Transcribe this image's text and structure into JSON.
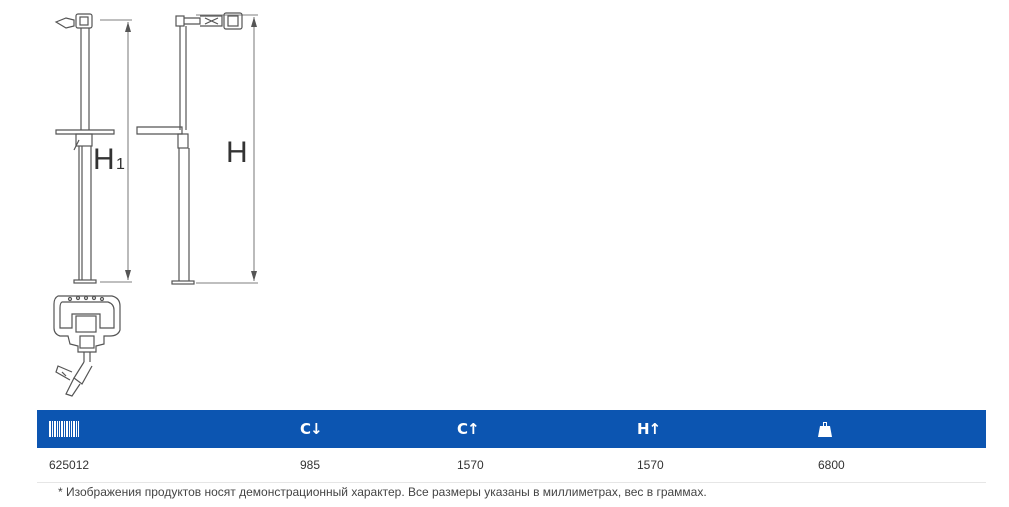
{
  "drawing": {
    "label_h1": "H",
    "label_h1_sub": "1",
    "label_h": "H"
  },
  "table": {
    "header_icons": [
      "barcode-icon",
      "collapsed-height-icon",
      "max-height-icon",
      "height-icon",
      "weight-icon"
    ],
    "header_glyphs": {
      "col2": "C↓",
      "col3": "C↑",
      "col4": "H↑"
    },
    "rows": [
      {
        "code": "625012",
        "col2": "985",
        "col3": "1570",
        "col4": "1570",
        "weight": "6800"
      }
    ],
    "header_color": "#0c55b1"
  },
  "footnote": "* Изображения продуктов носят демонстрационный характер. Все размеры указаны в миллиметрах, вес в граммах."
}
